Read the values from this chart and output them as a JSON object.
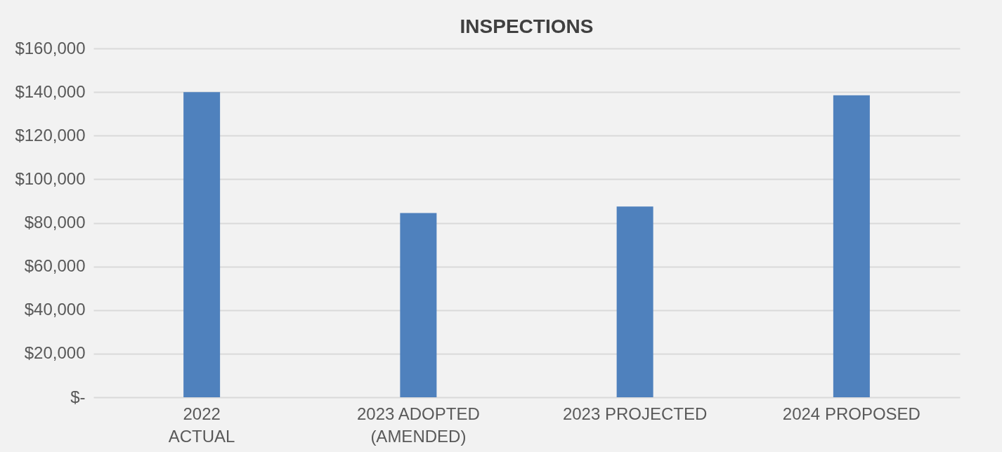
{
  "chart_data": {
    "type": "bar",
    "title": "INSPECTIONS",
    "categories": [
      "2022\nACTUAL",
      "2023 ADOPTED\n(AMENDED)",
      "2023 PROJECTED",
      "2024 PROPOSED"
    ],
    "values": [
      140000,
      84500,
      87500,
      138500
    ],
    "color": "#4f81bd",
    "ylim": [
      0,
      160000
    ],
    "yticks": [
      {
        "value": 0,
        "label": "$-"
      },
      {
        "value": 20000,
        "label": "$20,000"
      },
      {
        "value": 40000,
        "label": "$40,000"
      },
      {
        "value": 60000,
        "label": "$60,000"
      },
      {
        "value": 80000,
        "label": "$80,000"
      },
      {
        "value": 100000,
        "label": "$100,000"
      },
      {
        "value": 120000,
        "label": "$120,000"
      },
      {
        "value": 140000,
        "label": "$140,000"
      },
      {
        "value": 160000,
        "label": "$160,000"
      }
    ],
    "grid": "y"
  }
}
